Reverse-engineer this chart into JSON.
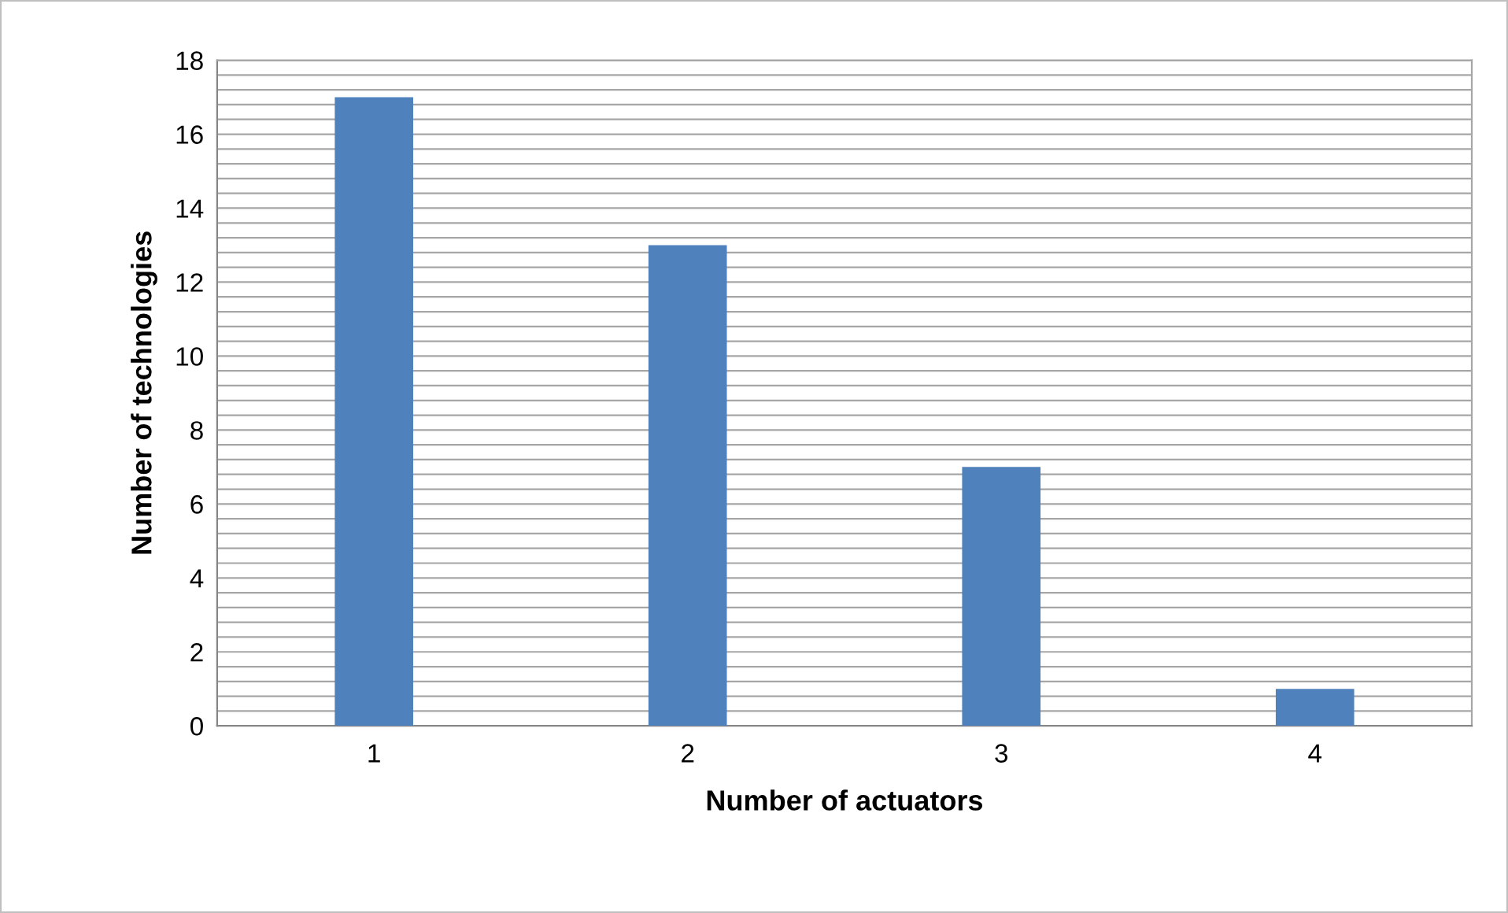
{
  "chart_data": {
    "type": "bar",
    "xlabel": "Number of actuators",
    "ylabel": "Number of technologies",
    "categories": [
      "1",
      "2",
      "3",
      "4"
    ],
    "values": [
      17,
      13,
      7,
      1
    ],
    "color": "#4f81bd",
    "ylim": [
      0,
      18
    ],
    "yticks": [
      0,
      {
        "value": 0.4,
        "label": null
      },
      {
        "value": 0.8,
        "label": null
      },
      {
        "value": 1.2,
        "label": null
      },
      {
        "value": 1.6,
        "label": null
      },
      2,
      {
        "value": 2.4,
        "label": null
      },
      {
        "value": 2.8,
        "label": null
      },
      {
        "value": 3.2,
        "label": null
      },
      {
        "value": 3.6,
        "label": null
      },
      4,
      {
        "value": 4.4,
        "label": null
      },
      {
        "value": 4.8,
        "label": null
      },
      {
        "value": 5.2,
        "label": null
      },
      {
        "value": 5.6,
        "label": null
      },
      6,
      {
        "value": 6.4,
        "label": null
      },
      {
        "value": 6.8,
        "label": null
      },
      {
        "value": 7.2,
        "label": null
      },
      {
        "value": 7.6,
        "label": null
      },
      8,
      {
        "value": 8.4,
        "label": null
      },
      {
        "value": 8.8,
        "label": null
      },
      {
        "value": 9.2,
        "label": null
      },
      {
        "value": 9.6,
        "label": null
      },
      10,
      {
        "value": 10.4,
        "label": null
      },
      {
        "value": 10.8,
        "label": null
      },
      {
        "value": 11.2,
        "label": null
      },
      {
        "value": 11.6,
        "label": null
      },
      12,
      {
        "value": 12.4,
        "label": null
      },
      {
        "value": 12.8,
        "label": null
      },
      {
        "value": 13.2,
        "label": null
      },
      {
        "value": 13.6,
        "label": null
      },
      14,
      {
        "value": 14.4,
        "label": null
      },
      {
        "value": 14.8,
        "label": null
      },
      {
        "value": 15.2,
        "label": null
      },
      {
        "value": 15.6,
        "label": null
      },
      16,
      {
        "value": 16.4,
        "label": null
      },
      {
        "value": 16.8,
        "label": null
      },
      {
        "value": 17.2,
        "label": null
      },
      {
        "value": 17.6,
        "label": null
      },
      18
    ],
    "grid": "y",
    "legend": false
  }
}
